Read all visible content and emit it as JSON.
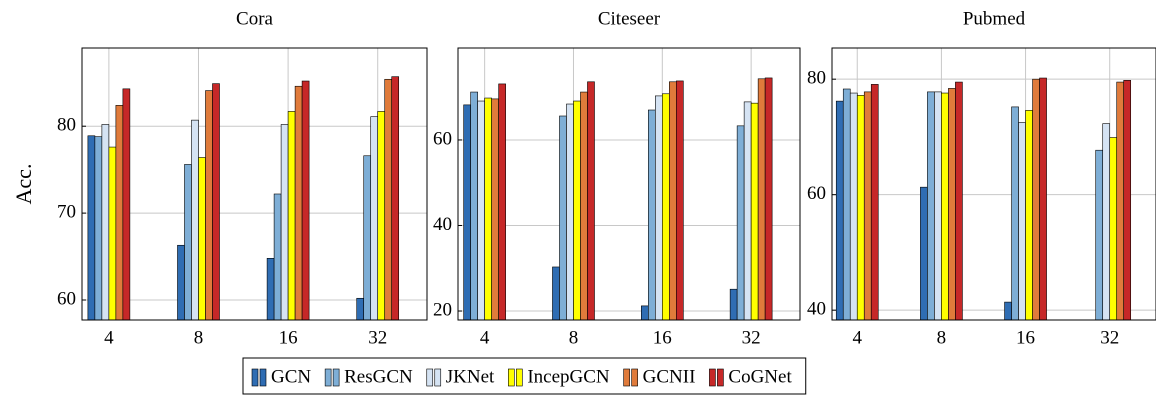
{
  "chart_data": [
    {
      "type": "bar",
      "title": "Cora",
      "y_label": "Acc.",
      "categories": [
        "4",
        "8",
        "16",
        "32"
      ],
      "ylim": [
        57.7,
        89
      ],
      "yticks": [
        60,
        70,
        80
      ],
      "grid": true,
      "series": [
        {
          "name": "GCN",
          "color": "#2f6db3",
          "values": [
            78.9,
            66.3,
            64.8,
            60.2
          ]
        },
        {
          "name": "ResGCN",
          "color": "#7eaed6",
          "values": [
            78.8,
            75.6,
            72.2,
            76.6
          ]
        },
        {
          "name": "JKNet",
          "color": "#d5e3f3",
          "values": [
            80.2,
            80.7,
            80.2,
            81.1
          ]
        },
        {
          "name": "IncepGCN",
          "color": "#ffff00",
          "values": [
            77.6,
            76.4,
            81.7,
            81.7
          ]
        },
        {
          "name": "GCNII",
          "color": "#e07b3b",
          "values": [
            82.4,
            84.1,
            84.6,
            85.4
          ]
        },
        {
          "name": "CoGNet",
          "color": "#c62828",
          "values": [
            84.3,
            84.9,
            85.2,
            85.7
          ]
        }
      ]
    },
    {
      "type": "bar",
      "title": "Citeseer",
      "categories": [
        "4",
        "8",
        "16",
        "32"
      ],
      "ylim": [
        17.9,
        81.5
      ],
      "yticks": [
        20,
        40,
        60
      ],
      "grid": true,
      "series": [
        {
          "name": "GCN",
          "color": "#2f6db3",
          "values": [
            68.2,
            30.3,
            21.2,
            25.1
          ]
        },
        {
          "name": "ResGCN",
          "color": "#7eaed6",
          "values": [
            71.2,
            65.6,
            67.0,
            63.3
          ]
        },
        {
          "name": "JKNet",
          "color": "#d5e3f3",
          "values": [
            69.1,
            68.4,
            70.3,
            68.9
          ]
        },
        {
          "name": "IncepGCN",
          "color": "#ffff00",
          "values": [
            69.8,
            69.1,
            70.8,
            68.6
          ]
        },
        {
          "name": "GCNII",
          "color": "#e07b3b",
          "values": [
            69.6,
            71.2,
            73.6,
            74.3
          ]
        },
        {
          "name": "CoGNet",
          "color": "#c62828",
          "values": [
            73.1,
            73.6,
            73.8,
            74.5
          ]
        }
      ]
    },
    {
      "type": "bar",
      "title": "Pubmed",
      "categories": [
        "4",
        "8",
        "16",
        "32"
      ],
      "ylim": [
        38.3,
        85.4
      ],
      "yticks": [
        40,
        60,
        80
      ],
      "grid": true,
      "series": [
        {
          "name": "GCN",
          "color": "#2f6db3",
          "values": [
            76.2,
            61.3,
            41.4,
            null
          ]
        },
        {
          "name": "ResGCN",
          "color": "#7eaed6",
          "values": [
            78.3,
            77.8,
            75.2,
            67.7
          ]
        },
        {
          "name": "JKNet",
          "color": "#d5e3f3",
          "values": [
            77.6,
            77.8,
            72.5,
            72.3
          ]
        },
        {
          "name": "IncepGCN",
          "color": "#ffff00",
          "values": [
            77.2,
            77.6,
            74.6,
            69.9
          ]
        },
        {
          "name": "GCNII",
          "color": "#e07b3b",
          "values": [
            77.8,
            78.4,
            80.0,
            79.5
          ]
        },
        {
          "name": "CoGNet",
          "color": "#c62828",
          "values": [
            79.1,
            79.5,
            80.2,
            79.8
          ]
        }
      ]
    }
  ]
}
